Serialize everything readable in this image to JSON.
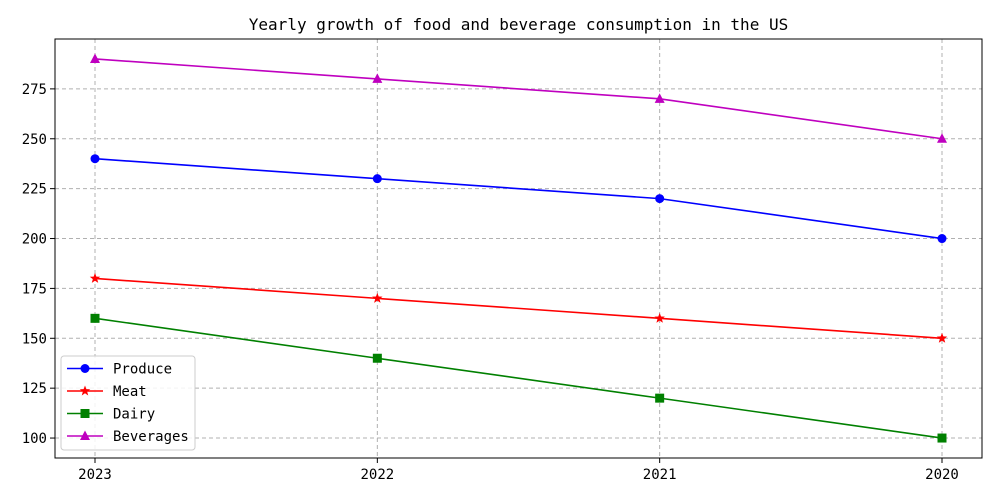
{
  "chart_data": {
    "type": "line",
    "title": "Yearly growth of food and beverage consumption in the US",
    "xlabel": "",
    "ylabel": "",
    "categories": [
      "2023",
      "2022",
      "2021",
      "2020"
    ],
    "ylim": [
      90,
      300
    ],
    "yticks": [
      100,
      125,
      150,
      175,
      200,
      225,
      250,
      275
    ],
    "grid": true,
    "legend_position": "lower-left",
    "series": [
      {
        "name": "Produce",
        "values": [
          240,
          230,
          220,
          200
        ],
        "color": "#0000ff",
        "marker": "circle"
      },
      {
        "name": "Meat",
        "values": [
          180,
          170,
          160,
          150
        ],
        "color": "#ff0000",
        "marker": "star"
      },
      {
        "name": "Dairy",
        "values": [
          160,
          140,
          120,
          100
        ],
        "color": "#008000",
        "marker": "square"
      },
      {
        "name": "Beverages",
        "values": [
          290,
          280,
          270,
          250
        ],
        "color": "#bf00bf",
        "marker": "triangle"
      }
    ]
  }
}
